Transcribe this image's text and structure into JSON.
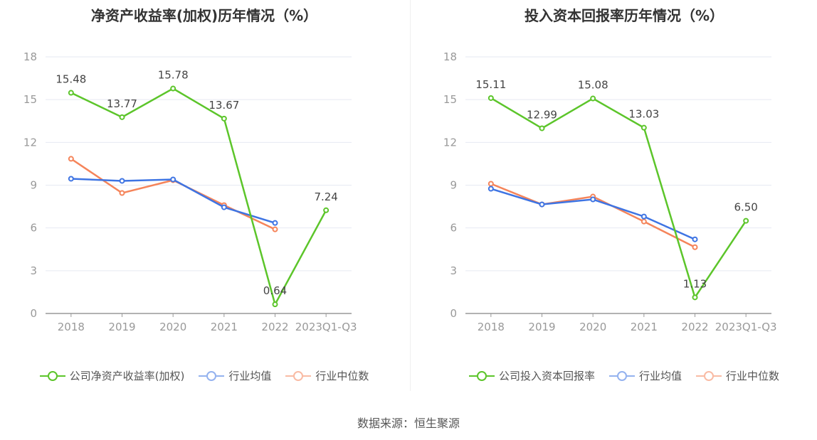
{
  "chart_data": [
    {
      "type": "line",
      "title": "净资产收益率(加权)历年情况（%）",
      "categories": [
        "2018",
        "2019",
        "2020",
        "2021",
        "2022",
        "2023Q1-Q3"
      ],
      "ylim": [
        0,
        18
      ],
      "yticks": [
        0,
        3,
        6,
        9,
        12,
        15,
        18
      ],
      "grid": true,
      "legend_placement": "bottom",
      "series": [
        {
          "name": "公司净资产收益率(加权)",
          "color": "#5cc52a",
          "values": [
            15.48,
            13.77,
            15.78,
            13.67,
            0.64,
            7.24
          ],
          "labels": [
            "15.48",
            "13.77",
            "15.78",
            "13.67",
            "0.64",
            "7.24"
          ]
        },
        {
          "name": "行业均值",
          "color": "#3e74e3",
          "values": [
            9.45,
            9.3,
            9.4,
            7.45,
            6.35,
            null
          ]
        },
        {
          "name": "行业中位数",
          "color": "#f5845a",
          "values": [
            10.85,
            8.45,
            9.35,
            7.6,
            5.9,
            null
          ]
        }
      ]
    },
    {
      "type": "line",
      "title": "投入资本回报率历年情况（%）",
      "categories": [
        "2018",
        "2019",
        "2020",
        "2021",
        "2022",
        "2023Q1-Q3"
      ],
      "ylim": [
        0,
        18
      ],
      "yticks": [
        0,
        3,
        6,
        9,
        12,
        15,
        18
      ],
      "grid": true,
      "legend_placement": "bottom",
      "series": [
        {
          "name": "公司投入资本回报率",
          "color": "#5cc52a",
          "values": [
            15.11,
            12.99,
            15.08,
            13.03,
            1.13,
            6.5
          ],
          "labels": [
            "15.11",
            "12.99",
            "15.08",
            "13.03",
            "1.13",
            "6.50"
          ]
        },
        {
          "name": "行业均值",
          "color": "#3e74e3",
          "values": [
            8.75,
            7.65,
            8.0,
            6.8,
            5.2,
            null
          ]
        },
        {
          "name": "行业中位数",
          "color": "#f5845a",
          "values": [
            9.1,
            7.65,
            8.2,
            6.45,
            4.65,
            null
          ]
        }
      ]
    }
  ],
  "source": "数据来源：恒生聚源"
}
